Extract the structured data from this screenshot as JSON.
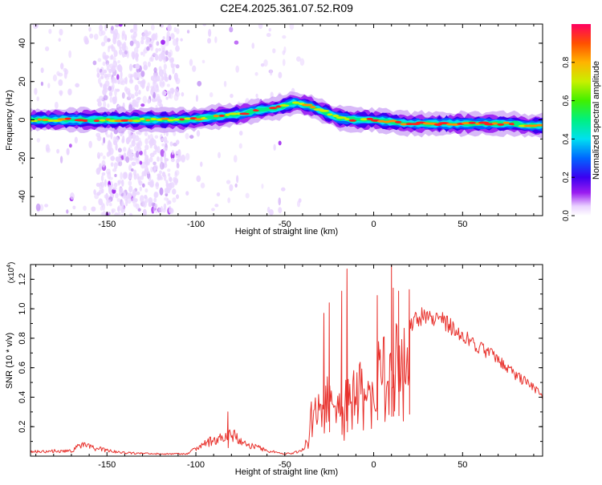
{
  "title": "C2E4.2025.361.07.52.R09",
  "colors": {
    "snr_line": "#e8322d",
    "frame": "#000000",
    "spectrogram_bg": "#ffffff"
  },
  "chart_data": [
    {
      "type": "heatmap",
      "name": "spectrogram",
      "xlabel": "Height of straight line (km)",
      "ylabel": "Frequency (Hz)",
      "xlim": [
        -193,
        95
      ],
      "ylim": [
        -50,
        50
      ],
      "x_ticks": [
        -150,
        -100,
        -50,
        0,
        50
      ],
      "x_tick_labels": [
        "-150",
        "-100",
        "-50",
        "0",
        "50"
      ],
      "y_ticks": [
        -40,
        -20,
        0,
        20,
        40
      ],
      "y_tick_labels": [
        "-40",
        "-20",
        "0",
        "20",
        "40"
      ],
      "ridge": {
        "description": "frequency of the spectral ridge vs height",
        "x": [
          -193,
          -170,
          -150,
          -130,
          -115,
          -105,
          -95,
          -85,
          -75,
          -65,
          -55,
          -48,
          -44,
          -40,
          -35,
          -30,
          -25,
          -20,
          -10,
          0,
          10,
          20,
          30,
          50,
          70,
          80,
          85,
          95
        ],
        "y": [
          0,
          0,
          0,
          0,
          0,
          0,
          1,
          2,
          3,
          5,
          6,
          8,
          9,
          8,
          7,
          5,
          3,
          1,
          0,
          0,
          -1,
          -2,
          -2,
          -2,
          -2,
          -2,
          -3,
          -3
        ]
      },
      "colorbar": {
        "label": "Normalized spectral amplitude",
        "range": [
          0,
          1
        ],
        "ticks": [
          0.0,
          0.2,
          0.4,
          0.6,
          0.8
        ],
        "tick_labels": [
          "0.0",
          "0.2",
          "0.4",
          "0.6",
          "0.8"
        ]
      }
    },
    {
      "type": "line",
      "name": "snr",
      "xlabel": "Height of straight line (km)",
      "ylabel": "SNR (10 * v/v)",
      "y_scale_label": "(x10",
      "y_scale_exponent": "4",
      "xlim": [
        -193,
        95
      ],
      "ylim": [
        0.0,
        1.3
      ],
      "x_ticks": [
        -150,
        -100,
        -50,
        0,
        50
      ],
      "x_tick_labels": [
        "-150",
        "-100",
        "-50",
        "0",
        "50"
      ],
      "y_ticks": [
        0.2,
        0.4,
        0.6,
        0.8,
        1.0,
        1.2
      ],
      "y_tick_labels": [
        "0.2",
        "0.4",
        "0.6",
        "0.8",
        "1.0",
        "1.2"
      ],
      "envelope": {
        "x": [
          -193,
          -170,
          -165,
          -150,
          -140,
          -120,
          -105,
          -100,
          -90,
          -80,
          -70,
          -60,
          -50,
          -45,
          -40,
          -37,
          -35,
          -30,
          -25,
          -20,
          -15,
          -10,
          -5,
          0,
          5,
          10,
          15,
          20,
          25,
          30,
          40,
          50,
          60,
          70,
          80,
          90,
          95
        ],
        "y": [
          0.04,
          0.05,
          0.1,
          0.05,
          0.03,
          0.02,
          0.02,
          0.07,
          0.15,
          0.2,
          0.1,
          0.05,
          0.02,
          0.03,
          0.06,
          0.15,
          0.4,
          0.5,
          0.55,
          0.45,
          0.55,
          0.6,
          0.72,
          0.8,
          0.85,
          0.9,
          0.92,
          0.95,
          1.0,
          1.02,
          0.97,
          0.87,
          0.78,
          0.7,
          0.58,
          0.5,
          0.42
        ]
      },
      "spikes": {
        "x": [
          -82,
          -28,
          -25,
          -18,
          -15,
          2,
          10,
          11,
          14,
          20
        ],
        "y": [
          0.3,
          0.97,
          1.04,
          1.12,
          1.27,
          1.09,
          1.3,
          1.14,
          1.12,
          1.13
        ]
      }
    }
  ]
}
